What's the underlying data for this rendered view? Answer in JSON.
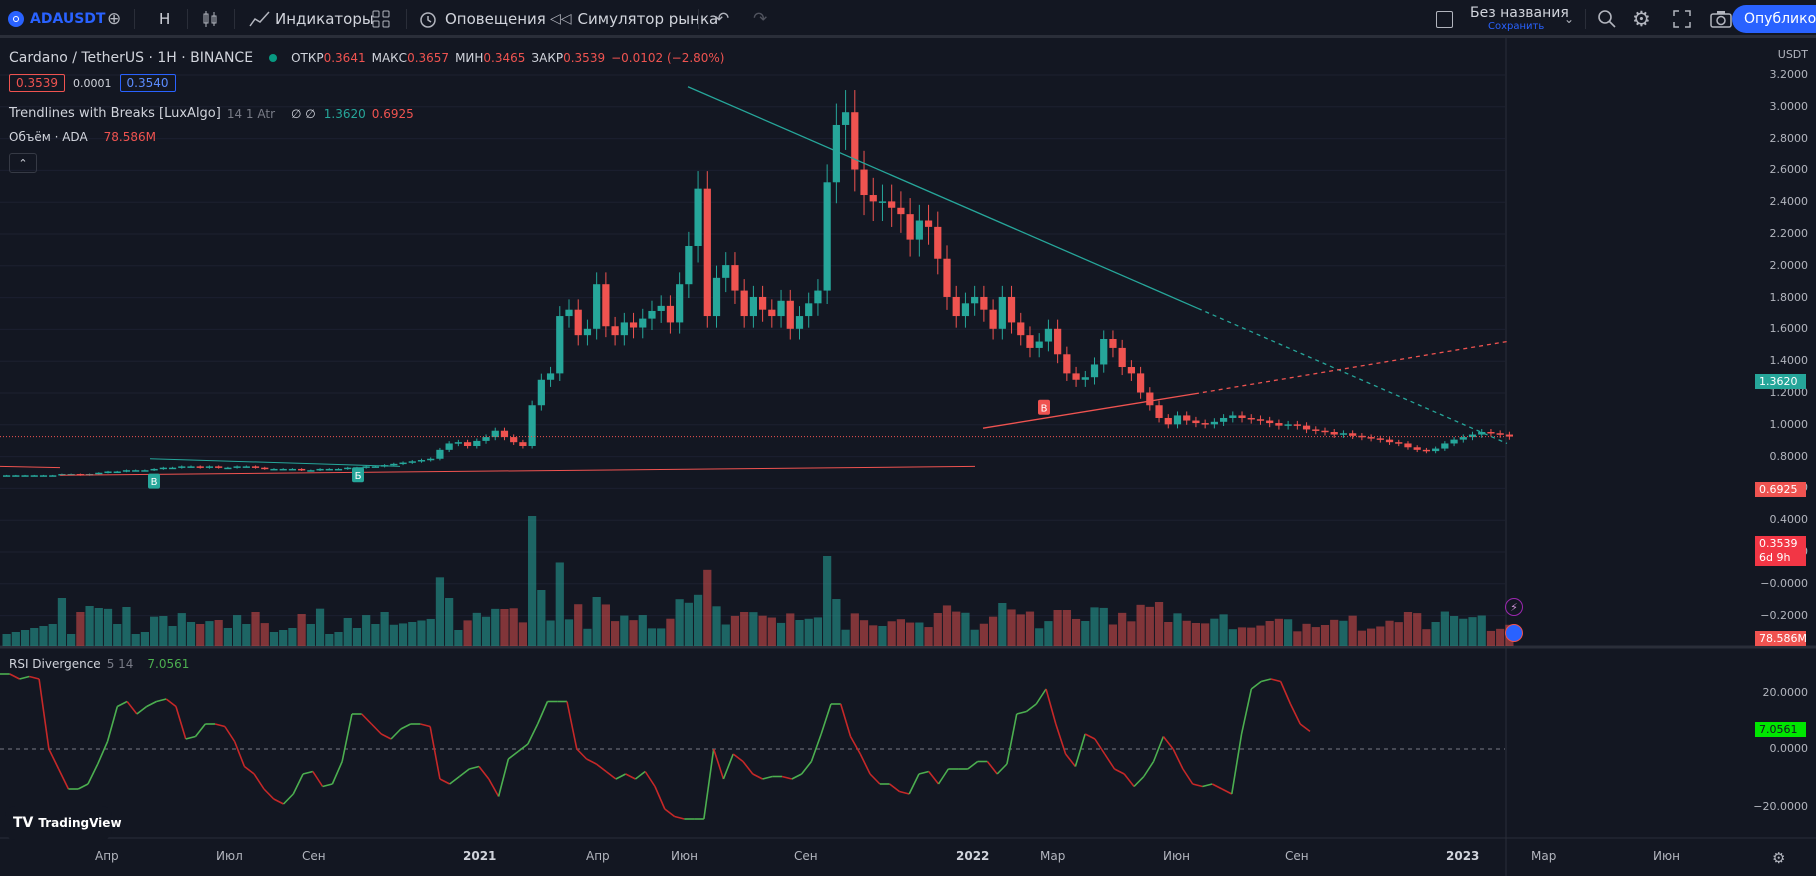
{
  "toolbar": {
    "symbol": "ADAUSDT",
    "interval": "Н",
    "indicators_label": "Индикаторы",
    "alerts_label": "Оповещения",
    "replay_label": "Симулятор рынка",
    "layout_name": "Без названия",
    "save_label": "Сохранить",
    "publish_label": "Опублико"
  },
  "legend": {
    "title": "Cardano / TetherUS · 1H · BINANCE",
    "open_label": "ОТКР",
    "open": "0.3641",
    "high_label": "МАКС",
    "high": "0.3657",
    "low_label": "МИН",
    "low": "0.3465",
    "close_label": "ЗАКР",
    "close": "0.3539",
    "change": "−0.0102 (−2.80%)",
    "bid": "0.3539",
    "spread": "0.0001",
    "ask": "0.3540",
    "trend_name": "Trendlines with Breaks [LuxAlgo]",
    "trend_params": "14 1 Atr",
    "trend_na": "∅  ∅",
    "trend_v1": "1.3620",
    "trend_v2": "0.6925",
    "volume_label": "Объём · ADA",
    "volume_value": "78.586M",
    "rsi_name": "RSI Divergence",
    "rsi_params": "5 14",
    "rsi_value": "7.0561"
  },
  "price_axis": {
    "currency": "USDT",
    "labels": [
      "3.2000",
      "3.0000",
      "2.8000",
      "2.6000",
      "2.4000",
      "2.2000",
      "2.0000",
      "1.8000",
      "1.6000",
      "1.4000",
      "1.2000",
      "1.0000",
      "0.8000",
      "0.6000",
      "0.4000",
      "0.2000",
      "−0.0000",
      "−0.2000"
    ],
    "tag_resistance": "1.3620",
    "tag_support": "0.6925",
    "tag_last": "0.3539",
    "tag_countdown": "6d 9h",
    "tag_volume": "78.586M"
  },
  "rsi_axis": {
    "labels": [
      "20.0000",
      "0.0000",
      "−20.0000"
    ],
    "tag_value": "7.0561"
  },
  "time_axis": [
    "Апр",
    "Июл",
    "Сен",
    "2021",
    "Апр",
    "Июн",
    "Сен",
    "2022",
    "Мар",
    "Июн",
    "Сен",
    "2023",
    "Мар",
    "Июн"
  ],
  "break_markers": [
    "B",
    "Б",
    "B"
  ],
  "branding": "TradingView",
  "colors": {
    "up": "#26a69a",
    "down": "#ef5350",
    "accent": "#2962ff",
    "rsi_up": "#4caf50",
    "rsi_down": "#c62828"
  },
  "chart_data": {
    "type": "candlestick",
    "symbol": "ADAUSDT",
    "ylim": [
      -0.2,
      3.2
    ],
    "x_ticks": [
      "Апр",
      "Июл",
      "Сен",
      "2021",
      "Апр",
      "Июн",
      "Сен",
      "2022",
      "Мар",
      "Июн",
      "Сен",
      "2023",
      "Мар",
      "Июн"
    ],
    "close": [
      0.05,
      0.05,
      0.05,
      0.05,
      0.05,
      0.05,
      0.06,
      0.06,
      0.05,
      0.06,
      0.07,
      0.08,
      0.08,
      0.09,
      0.09,
      0.09,
      0.1,
      0.11,
      0.11,
      0.12,
      0.12,
      0.11,
      0.12,
      0.11,
      0.11,
      0.12,
      0.12,
      0.11,
      0.1,
      0.1,
      0.1,
      0.1,
      0.09,
      0.09,
      0.1,
      0.1,
      0.1,
      0.11,
      0.11,
      0.12,
      0.12,
      0.13,
      0.14,
      0.15,
      0.16,
      0.17,
      0.18,
      0.25,
      0.3,
      0.31,
      0.28,
      0.32,
      0.35,
      0.4,
      0.35,
      0.31,
      0.28,
      0.6,
      0.8,
      0.85,
      1.3,
      1.35,
      1.15,
      1.2,
      1.55,
      1.22,
      1.15,
      1.25,
      1.21,
      1.28,
      1.34,
      1.38,
      1.25,
      1.55,
      1.85,
      2.3,
      1.3,
      1.6,
      1.7,
      1.5,
      1.3,
      1.45,
      1.35,
      1.3,
      1.42,
      1.2,
      1.3,
      1.4,
      1.5,
      2.35,
      2.8,
      2.9,
      2.45,
      2.25,
      2.2,
      2.2,
      2.15,
      2.1,
      1.9,
      2.05,
      2.0,
      1.75,
      1.45,
      1.3,
      1.4,
      1.45,
      1.35,
      1.2,
      1.45,
      1.25,
      1.15,
      1.05,
      1.1,
      1.2,
      1.0,
      0.85,
      0.8,
      0.82,
      0.92,
      1.12,
      1.05,
      0.9,
      0.85,
      0.7,
      0.6,
      0.5,
      0.45,
      0.52,
      0.48,
      0.46,
      0.45,
      0.47,
      0.5,
      0.52,
      0.5,
      0.49,
      0.48,
      0.46,
      0.44,
      0.45,
      0.44,
      0.41,
      0.4,
      0.39,
      0.37,
      0.38,
      0.36,
      0.35,
      0.34,
      0.33,
      0.31,
      0.3,
      0.27,
      0.25,
      0.24,
      0.26,
      0.3,
      0.33,
      0.35,
      0.37,
      0.39,
      0.38,
      0.37,
      0.3539
    ],
    "trendlines": {
      "resistance": {
        "from": [
          688,
          3.1
        ],
        "solid_to": [
          1198,
          1.36
        ],
        "dashed_to": [
          1507,
          0.3
        ]
      },
      "support": {
        "from": [
          983,
          0.42
        ],
        "solid_to": [
          1195,
          0.69
        ],
        "dashed_to": [
          1507,
          1.1
        ]
      }
    },
    "rsi": {
      "ylim": [
        -30,
        30
      ],
      "zero_line": 0,
      "last": 7.0561,
      "values": [
        30,
        30,
        28,
        29,
        28,
        0,
        -8,
        -16,
        -16,
        -14,
        -6,
        3,
        17,
        19,
        14,
        17,
        19,
        20,
        17,
        4,
        5,
        10,
        10,
        9,
        3,
        -7,
        -10,
        -16,
        -20,
        -22,
        -18,
        -10,
        -9,
        -15,
        -14,
        -5,
        14,
        14,
        10,
        6,
        4,
        8,
        10,
        10,
        9,
        -12,
        -14,
        -11,
        -8,
        -7,
        -12,
        -19,
        -4,
        -1,
        2,
        10,
        19,
        19,
        19,
        0,
        -4,
        -6,
        -9,
        -12,
        -10,
        -12,
        -9,
        -15,
        -24,
        -27,
        -28,
        -28,
        -28,
        0,
        -12,
        -2,
        -5,
        -10,
        -12,
        -11,
        -11,
        -12,
        -10,
        -5,
        6,
        18,
        18,
        5,
        -2,
        -10,
        -14,
        -14,
        -17,
        -18,
        -10,
        -9,
        -14,
        -8,
        -8,
        -8,
        -5,
        -5,
        -10,
        -6,
        14,
        15,
        18,
        24,
        10,
        -2,
        -7,
        6,
        4,
        -2,
        -8,
        -10,
        -15,
        -11,
        -5,
        5,
        0,
        -8,
        -14,
        -15,
        -14,
        -16,
        -18,
        6,
        24,
        27,
        28,
        27,
        18,
        10,
        7.0561
      ]
    }
  }
}
